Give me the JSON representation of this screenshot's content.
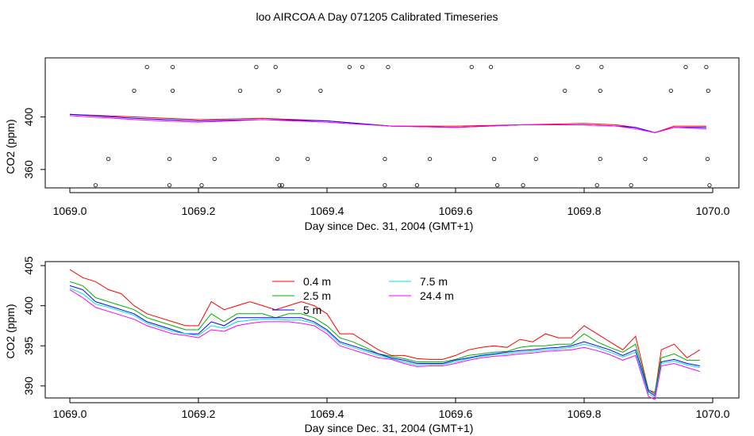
{
  "title": "loo AIRCOA A  Day 071205  Calibrated Timeseries",
  "colors": {
    "0.4 m": "#ff0000",
    "2.5 m": "#00b000",
    "5 m": "#0000ff",
    "7.5 m": "#00e0e0",
    "24.4 m": "#ff00ff",
    "axis": "#000000"
  },
  "chart_data": [
    {
      "type": "line",
      "panel": "top",
      "xlabel": "Day since Dec. 31, 2004 (GMT+1)",
      "ylabel": "CO2 (ppm)",
      "xlim": [
        1069.0,
        1070.0
      ],
      "ylim": [
        346,
        445
      ],
      "xticks": [
        "1069.0",
        "1069.2",
        "1069.4",
        "1069.6",
        "1069.8",
        "1070.0"
      ],
      "yticks": [
        "360",
        "400"
      ],
      "ytick_values": [
        360,
        400
      ],
      "grid": false,
      "legend": "none",
      "series": [
        {
          "color": "#ff0000",
          "x": [
            1069.0,
            1069.1,
            1069.2,
            1069.3,
            1069.4,
            1069.5,
            1069.6,
            1069.7,
            1069.8,
            1069.85,
            1069.88,
            1069.91,
            1069.94,
            1069.99
          ],
          "y": [
            402,
            400,
            398,
            399,
            397,
            393,
            393,
            394,
            395,
            394,
            392,
            388,
            393,
            393
          ]
        },
        {
          "color": "#0000ff",
          "x": [
            1069.0,
            1069.1,
            1069.2,
            1069.3,
            1069.4,
            1069.5,
            1069.6,
            1069.7,
            1069.8,
            1069.85,
            1069.88,
            1069.91,
            1069.94,
            1069.99
          ],
          "y": [
            402,
            399,
            397,
            398,
            397,
            393,
            392,
            394,
            394,
            393,
            392,
            388,
            392,
            392
          ]
        },
        {
          "color": "#ff00ff",
          "x": [
            1069.0,
            1069.1,
            1069.2,
            1069.3,
            1069.4,
            1069.5,
            1069.6,
            1069.7,
            1069.8,
            1069.85,
            1069.88,
            1069.91,
            1069.94,
            1069.99
          ],
          "y": [
            401,
            398,
            396,
            398,
            396,
            393,
            392,
            394,
            394,
            393,
            391,
            388,
            392,
            391
          ]
        }
      ],
      "points": {
        "x": [
          1069.04,
          1069.06,
          1069.1,
          1069.12,
          1069.155,
          1069.155,
          1069.16,
          1069.16,
          1069.205,
          1069.225,
          1069.265,
          1069.29,
          1069.32,
          1069.323,
          1069.325,
          1069.326,
          1069.33,
          1069.37,
          1069.39,
          1069.435,
          1069.455,
          1069.49,
          1069.49,
          1069.495,
          1069.54,
          1069.56,
          1069.625,
          1069.655,
          1069.66,
          1069.665,
          1069.705,
          1069.725,
          1069.77,
          1069.79,
          1069.82,
          1069.825,
          1069.825,
          1069.827,
          1069.873,
          1069.895,
          1069.935,
          1069.958,
          1069.99,
          1069.992,
          1069.993,
          1069.995
        ],
        "y": [
          348,
          368,
          420,
          438,
          348,
          368,
          420,
          438,
          348,
          368,
          420,
          438,
          438,
          368,
          420,
          348,
          348,
          368,
          420,
          438,
          438,
          348,
          368,
          438,
          348,
          368,
          438,
          438,
          368,
          348,
          348,
          368,
          420,
          438,
          348,
          368,
          420,
          438,
          348,
          368,
          420,
          438,
          438,
          368,
          420,
          348
        ]
      }
    },
    {
      "type": "line",
      "panel": "bottom",
      "xlabel": "Day since Dec. 31, 2004 (GMT+1)",
      "ylabel": "CO2 (ppm)",
      "xlim": [
        1069.0,
        1070.0
      ],
      "ylim": [
        388.5,
        405.5
      ],
      "xticks": [
        "1069.0",
        "1069.2",
        "1069.4",
        "1069.6",
        "1069.8",
        "1070.0"
      ],
      "yticks": [
        "390",
        "395",
        "400",
        "405"
      ],
      "ytick_values": [
        390,
        395,
        400,
        405
      ],
      "grid": false,
      "legend": "upper-center",
      "series": [
        {
          "name": "0.4 m",
          "color": "#ff0000",
          "x": [
            1069.0,
            1069.02,
            1069.04,
            1069.06,
            1069.08,
            1069.1,
            1069.12,
            1069.14,
            1069.16,
            1069.18,
            1069.2,
            1069.22,
            1069.24,
            1069.26,
            1069.28,
            1069.3,
            1069.32,
            1069.34,
            1069.36,
            1069.38,
            1069.4,
            1069.42,
            1069.44,
            1069.46,
            1069.48,
            1069.5,
            1069.52,
            1069.54,
            1069.56,
            1069.58,
            1069.6,
            1069.62,
            1069.64,
            1069.66,
            1069.68,
            1069.7,
            1069.72,
            1069.74,
            1069.76,
            1069.78,
            1069.8,
            1069.82,
            1069.84,
            1069.86,
            1069.88,
            1069.9,
            1069.91,
            1069.92,
            1069.94,
            1069.96,
            1069.98
          ],
          "y": [
            404.5,
            403.5,
            403,
            402,
            401.5,
            400,
            399,
            398.5,
            398,
            397.5,
            397.5,
            400.5,
            399.5,
            400,
            400.5,
            400,
            399.5,
            400,
            400.5,
            400,
            399,
            396.5,
            396.5,
            395.5,
            394.5,
            393.8,
            393.8,
            393.4,
            393.3,
            393.3,
            393.8,
            394.5,
            394.8,
            395,
            394.8,
            395.8,
            395.5,
            396.5,
            396,
            396,
            397.5,
            396.5,
            395.5,
            394.5,
            396.2,
            389.5,
            389,
            394.5,
            395.2,
            393.5,
            394.5
          ]
        },
        {
          "name": "2.5 m",
          "color": "#00b000",
          "x": [
            1069.0,
            1069.02,
            1069.04,
            1069.06,
            1069.08,
            1069.1,
            1069.12,
            1069.14,
            1069.16,
            1069.18,
            1069.2,
            1069.22,
            1069.24,
            1069.26,
            1069.28,
            1069.3,
            1069.32,
            1069.34,
            1069.36,
            1069.38,
            1069.4,
            1069.42,
            1069.44,
            1069.46,
            1069.48,
            1069.5,
            1069.52,
            1069.54,
            1069.56,
            1069.58,
            1069.6,
            1069.62,
            1069.64,
            1069.66,
            1069.68,
            1069.7,
            1069.72,
            1069.74,
            1069.76,
            1069.78,
            1069.8,
            1069.82,
            1069.84,
            1069.86,
            1069.88,
            1069.9,
            1069.91,
            1069.92,
            1069.94,
            1069.96,
            1069.98
          ],
          "y": [
            403,
            402.5,
            401,
            400.5,
            400,
            399.5,
            398.5,
            398,
            397.5,
            397,
            397,
            399,
            398,
            399,
            399,
            399,
            398.5,
            399,
            399,
            398.5,
            397.5,
            396,
            395.5,
            394.8,
            394,
            393.7,
            393.4,
            393,
            393,
            393,
            393.3,
            393.8,
            394,
            394.2,
            394.3,
            394.8,
            395,
            395,
            395.2,
            395.2,
            396.5,
            395.5,
            394.8,
            394.2,
            395.2,
            389.5,
            389.2,
            393.5,
            394,
            393.2,
            393.2
          ]
        },
        {
          "name": "5 m",
          "color": "#0000ff",
          "x": [
            1069.0,
            1069.02,
            1069.04,
            1069.06,
            1069.08,
            1069.1,
            1069.12,
            1069.14,
            1069.16,
            1069.18,
            1069.2,
            1069.22,
            1069.24,
            1069.26,
            1069.28,
            1069.3,
            1069.32,
            1069.34,
            1069.36,
            1069.38,
            1069.4,
            1069.42,
            1069.44,
            1069.46,
            1069.48,
            1069.5,
            1069.52,
            1069.54,
            1069.56,
            1069.58,
            1069.6,
            1069.62,
            1069.64,
            1069.66,
            1069.68,
            1069.7,
            1069.72,
            1069.74,
            1069.76,
            1069.78,
            1069.8,
            1069.82,
            1069.84,
            1069.86,
            1069.88,
            1069.9,
            1069.91,
            1069.92,
            1069.94,
            1069.96,
            1069.98
          ],
          "y": [
            402.5,
            402,
            400.5,
            400,
            399.5,
            399,
            398,
            397.5,
            397,
            396.5,
            396.5,
            398,
            397.5,
            398.5,
            398.5,
            398.5,
            398.5,
            398.5,
            398.5,
            398,
            397,
            395.5,
            395,
            394.5,
            394,
            393.5,
            393.2,
            392.8,
            392.8,
            392.8,
            393.2,
            393.5,
            393.8,
            394,
            394.2,
            394.4,
            394.5,
            394.7,
            394.8,
            395,
            395.5,
            395,
            394.5,
            393.8,
            394.5,
            389.3,
            388.8,
            393,
            393.3,
            392.8,
            392.5
          ]
        },
        {
          "name": "7.5 m",
          "color": "#00e0e0",
          "x": [
            1069.0,
            1069.02,
            1069.04,
            1069.06,
            1069.08,
            1069.1,
            1069.12,
            1069.14,
            1069.16,
            1069.18,
            1069.2,
            1069.22,
            1069.24,
            1069.26,
            1069.28,
            1069.3,
            1069.32,
            1069.34,
            1069.36,
            1069.38,
            1069.4,
            1069.42,
            1069.44,
            1069.46,
            1069.48,
            1069.5,
            1069.52,
            1069.54,
            1069.56,
            1069.58,
            1069.6,
            1069.62,
            1069.64,
            1069.66,
            1069.68,
            1069.7,
            1069.72,
            1069.74,
            1069.76,
            1069.78,
            1069.8,
            1069.82,
            1069.84,
            1069.86,
            1069.88,
            1069.9,
            1069.91,
            1069.92,
            1069.94,
            1069.96,
            1069.98
          ],
          "y": [
            402.2,
            401.5,
            400.2,
            399.8,
            399.3,
            398.8,
            397.8,
            397.3,
            396.8,
            396.5,
            396.3,
            397.5,
            397.2,
            398,
            398.2,
            398.3,
            398.3,
            398.2,
            398.2,
            397.8,
            396.8,
            395.3,
            394.8,
            394.3,
            393.8,
            393.4,
            393,
            392.6,
            392.7,
            392.7,
            393,
            393.4,
            393.7,
            393.9,
            394,
            394.2,
            394.3,
            394.5,
            394.6,
            394.8,
            395.2,
            394.8,
            394.2,
            393.6,
            394.2,
            389,
            388.6,
            392.8,
            393.1,
            392.6,
            392.3
          ]
        },
        {
          "name": "24.4 m",
          "color": "#ff00ff",
          "x": [
            1069.0,
            1069.02,
            1069.04,
            1069.06,
            1069.08,
            1069.1,
            1069.12,
            1069.14,
            1069.16,
            1069.18,
            1069.2,
            1069.22,
            1069.24,
            1069.26,
            1069.28,
            1069.3,
            1069.32,
            1069.34,
            1069.36,
            1069.38,
            1069.4,
            1069.42,
            1069.44,
            1069.46,
            1069.48,
            1069.5,
            1069.52,
            1069.54,
            1069.56,
            1069.58,
            1069.6,
            1069.62,
            1069.64,
            1069.66,
            1069.68,
            1069.7,
            1069.72,
            1069.74,
            1069.76,
            1069.78,
            1069.8,
            1069.82,
            1069.84,
            1069.86,
            1069.88,
            1069.9,
            1069.91,
            1069.92,
            1069.94,
            1069.96,
            1069.98
          ],
          "y": [
            402,
            401,
            399.8,
            399.3,
            398.8,
            398.3,
            397.5,
            397,
            396.5,
            396.3,
            396,
            397,
            396.8,
            397.5,
            397.8,
            398,
            398,
            398,
            397.8,
            397.5,
            396.5,
            395,
            394.5,
            394,
            393.5,
            393.3,
            392.8,
            392.4,
            392.5,
            392.5,
            392.8,
            393.2,
            393.5,
            393.7,
            393.8,
            394,
            394.1,
            394.3,
            394.4,
            394.5,
            394.8,
            394.4,
            393.9,
            393.2,
            393.8,
            388.7,
            388.3,
            392.5,
            392.8,
            392.3,
            391.8
          ]
        }
      ]
    }
  ]
}
